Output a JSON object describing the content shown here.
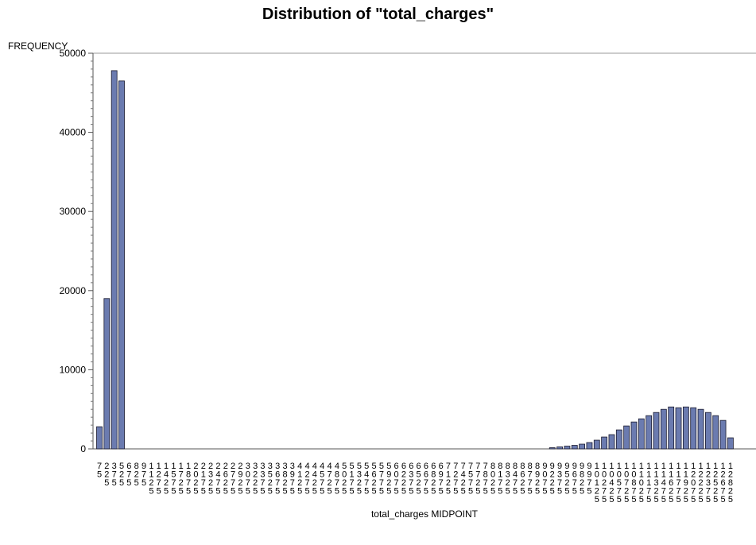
{
  "chart_data": {
    "type": "bar",
    "title": "Distribution of \"total_charges\"",
    "ylabel": "FREQUENCY",
    "xlabel": "total_charges MIDPOINT",
    "ylim": [
      0,
      50000
    ],
    "y_ticks": [
      0,
      10000,
      20000,
      30000,
      40000,
      50000
    ],
    "grid": false,
    "bar_color": "#6b7bb0",
    "categories": [
      "75",
      "225",
      "375",
      "525",
      "675",
      "825",
      "975",
      "1125",
      "1275",
      "1425",
      "1575",
      "1725",
      "1875",
      "2025",
      "2175",
      "2325",
      "2475",
      "2625",
      "2775",
      "2925",
      "3075",
      "3225",
      "3375",
      "3525",
      "3675",
      "3825",
      "3975",
      "4125",
      "4275",
      "4425",
      "4575",
      "4725",
      "4875",
      "5025",
      "5175",
      "5325",
      "5475",
      "5625",
      "5775",
      "5925",
      "6075",
      "6225",
      "6375",
      "6525",
      "6675",
      "6825",
      "6975",
      "7125",
      "7275",
      "7425",
      "7575",
      "7725",
      "7875",
      "8025",
      "8175",
      "8325",
      "8475",
      "8625",
      "8775",
      "8925",
      "9075",
      "9225",
      "9375",
      "9525",
      "9675",
      "9825",
      "9975",
      "10125",
      "10275",
      "10425",
      "10575",
      "10725",
      "10875",
      "11025",
      "11175",
      "11325",
      "11475",
      "11625",
      "11775",
      "11925",
      "12075",
      "12225",
      "12375",
      "12525",
      "12675",
      "12825"
    ],
    "values": [
      2800,
      19000,
      47800,
      46500,
      0,
      0,
      0,
      0,
      0,
      0,
      0,
      0,
      0,
      0,
      0,
      0,
      0,
      0,
      0,
      0,
      0,
      0,
      0,
      0,
      0,
      0,
      0,
      0,
      0,
      0,
      0,
      0,
      0,
      0,
      0,
      0,
      0,
      0,
      0,
      0,
      0,
      0,
      0,
      0,
      0,
      0,
      0,
      0,
      0,
      0,
      0,
      0,
      0,
      0,
      0,
      0,
      0,
      0,
      0,
      0,
      0,
      150,
      250,
      350,
      450,
      600,
      800,
      1100,
      1500,
      1800,
      2400,
      2900,
      3400,
      3800,
      4200,
      4600,
      5000,
      5300,
      5200,
      5300,
      5200,
      5000,
      4600,
      4200,
      3600,
      1400
    ]
  }
}
